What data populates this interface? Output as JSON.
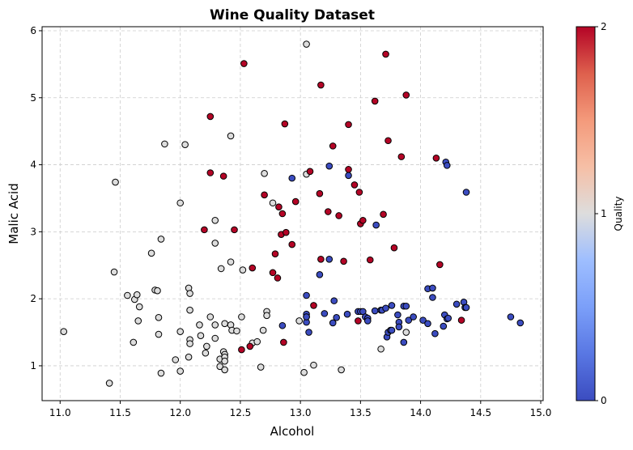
{
  "chart_data": {
    "type": "scatter",
    "title": "Wine Quality Dataset",
    "xlabel": "Alcohol",
    "ylabel": "Malic Acid",
    "xlim": [
      10.85,
      15.02
    ],
    "ylim": [
      0.48,
      6.06
    ],
    "xticks": [
      "11.0",
      "11.5",
      "12.0",
      "12.5",
      "13.0",
      "13.5",
      "14.0",
      "14.5",
      "15.0"
    ],
    "yticks": [
      "1",
      "2",
      "3",
      "4",
      "5",
      "6"
    ],
    "grid": true,
    "colorbar": {
      "label": "Quality",
      "colormap": "coolwarm",
      "ticks": [
        "0",
        "1",
        "2"
      ],
      "colors": [
        "#3b4cc0",
        "#dddddd",
        "#b40426"
      ]
    },
    "series": [
      {
        "name": "0",
        "color": "#3b4cc0",
        "points": [
          [
            13.05,
            2.05
          ],
          [
            13.05,
            1.77
          ],
          [
            13.05,
            1.73
          ],
          [
            13.05,
            1.65
          ],
          [
            13.07,
            1.5
          ],
          [
            13.16,
            2.36
          ],
          [
            13.2,
            1.78
          ],
          [
            13.24,
            2.59
          ],
          [
            13.24,
            3.98
          ],
          [
            13.27,
            1.64
          ],
          [
            13.28,
            1.97
          ],
          [
            13.3,
            1.72
          ],
          [
            13.39,
            1.77
          ],
          [
            13.4,
            3.84
          ],
          [
            13.48,
            1.81
          ],
          [
            13.5,
            1.81
          ],
          [
            13.52,
            1.81
          ],
          [
            13.54,
            1.73
          ],
          [
            13.56,
            1.71
          ],
          [
            13.56,
            1.67
          ],
          [
            13.62,
            1.82
          ],
          [
            13.63,
            3.1
          ],
          [
            13.67,
            1.83
          ],
          [
            13.68,
            1.83
          ],
          [
            13.71,
            1.86
          ],
          [
            13.72,
            1.43
          ],
          [
            13.73,
            1.5
          ],
          [
            13.75,
            1.53
          ],
          [
            13.76,
            1.9
          ],
          [
            13.76,
            1.53
          ],
          [
            13.81,
            1.76
          ],
          [
            13.82,
            1.65
          ],
          [
            13.82,
            1.58
          ],
          [
            13.86,
            1.35
          ],
          [
            13.86,
            1.89
          ],
          [
            13.88,
            1.89
          ],
          [
            13.9,
            1.68
          ],
          [
            13.94,
            1.73
          ],
          [
            14.02,
            1.68
          ],
          [
            14.06,
            1.63
          ],
          [
            14.06,
            2.15
          ],
          [
            14.1,
            2.16
          ],
          [
            14.1,
            2.02
          ],
          [
            14.12,
            1.48
          ],
          [
            14.19,
            1.59
          ],
          [
            14.2,
            1.76
          ],
          [
            14.21,
            4.04
          ],
          [
            14.22,
            3.99
          ],
          [
            14.22,
            1.7
          ],
          [
            14.23,
            1.71
          ],
          [
            14.3,
            1.92
          ],
          [
            14.36,
            1.95
          ],
          [
            14.37,
            1.87
          ],
          [
            14.38,
            1.87
          ],
          [
            14.38,
            3.59
          ],
          [
            14.75,
            1.73
          ],
          [
            14.83,
            1.64
          ],
          [
            12.85,
            1.6
          ],
          [
            12.93,
            3.8
          ],
          [
            13.05,
            1.73
          ]
        ]
      },
      {
        "name": "1",
        "color": "#dddddd",
        "points": [
          [
            11.03,
            1.51
          ],
          [
            11.41,
            0.74
          ],
          [
            11.45,
            2.4
          ],
          [
            11.46,
            3.74
          ],
          [
            11.56,
            2.05
          ],
          [
            11.61,
            1.35
          ],
          [
            11.62,
            1.99
          ],
          [
            11.64,
            2.06
          ],
          [
            11.65,
            1.67
          ],
          [
            11.66,
            1.88
          ],
          [
            11.76,
            2.68
          ],
          [
            11.79,
            2.13
          ],
          [
            11.81,
            2.12
          ],
          [
            11.82,
            1.72
          ],
          [
            11.82,
            1.47
          ],
          [
            11.84,
            2.89
          ],
          [
            11.84,
            0.89
          ],
          [
            11.87,
            4.31
          ],
          [
            11.96,
            1.09
          ],
          [
            12.0,
            0.92
          ],
          [
            12.0,
            3.43
          ],
          [
            12.0,
            1.51
          ],
          [
            12.04,
            4.3
          ],
          [
            12.07,
            2.16
          ],
          [
            12.07,
            1.13
          ],
          [
            12.08,
            1.39
          ],
          [
            12.08,
            1.33
          ],
          [
            12.08,
            1.83
          ],
          [
            12.08,
            2.08
          ],
          [
            12.16,
            1.61
          ],
          [
            12.17,
            1.45
          ],
          [
            12.21,
            1.19
          ],
          [
            12.22,
            1.29
          ],
          [
            12.25,
            1.73
          ],
          [
            12.29,
            1.61
          ],
          [
            12.29,
            3.17
          ],
          [
            12.29,
            2.83
          ],
          [
            12.29,
            1.41
          ],
          [
            12.33,
            0.99
          ],
          [
            12.33,
            1.1
          ],
          [
            12.34,
            2.45
          ],
          [
            12.36,
            1.21
          ],
          [
            12.37,
            1.17
          ],
          [
            12.37,
            1.13
          ],
          [
            12.37,
            1.07
          ],
          [
            12.37,
            0.94
          ],
          [
            12.37,
            1.63
          ],
          [
            12.42,
            4.43
          ],
          [
            12.42,
            2.55
          ],
          [
            12.42,
            1.61
          ],
          [
            12.43,
            1.53
          ],
          [
            12.47,
            1.52
          ],
          [
            12.51,
            1.73
          ],
          [
            12.52,
            2.43
          ],
          [
            12.6,
            1.34
          ],
          [
            12.64,
            1.36
          ],
          [
            12.67,
            0.98
          ],
          [
            12.69,
            1.53
          ],
          [
            12.7,
            3.87
          ],
          [
            12.72,
            1.81
          ],
          [
            12.72,
            1.75
          ],
          [
            12.77,
            3.43
          ],
          [
            12.99,
            1.67
          ],
          [
            13.03,
            0.9
          ],
          [
            13.05,
            5.8
          ],
          [
            13.05,
            3.86
          ],
          [
            13.11,
            1.01
          ],
          [
            13.34,
            0.94
          ],
          [
            13.67,
            1.25
          ],
          [
            13.88,
            1.5
          ]
        ]
      },
      {
        "name": "2",
        "color": "#b40426",
        "points": [
          [
            12.2,
            3.03
          ],
          [
            12.25,
            4.72
          ],
          [
            12.25,
            3.88
          ],
          [
            12.36,
            3.83
          ],
          [
            12.45,
            3.03
          ],
          [
            12.51,
            1.24
          ],
          [
            12.53,
            5.51
          ],
          [
            12.58,
            1.29
          ],
          [
            12.6,
            2.46
          ],
          [
            12.7,
            3.55
          ],
          [
            12.77,
            2.39
          ],
          [
            12.79,
            2.67
          ],
          [
            12.81,
            2.31
          ],
          [
            12.82,
            3.37
          ],
          [
            12.84,
            2.96
          ],
          [
            12.85,
            3.27
          ],
          [
            12.86,
            1.35
          ],
          [
            12.87,
            4.61
          ],
          [
            12.88,
            2.99
          ],
          [
            12.93,
            2.81
          ],
          [
            12.96,
            3.45
          ],
          [
            13.08,
            3.9
          ],
          [
            13.11,
            1.9
          ],
          [
            13.16,
            3.57
          ],
          [
            13.17,
            2.59
          ],
          [
            13.17,
            5.19
          ],
          [
            13.23,
            3.3
          ],
          [
            13.27,
            4.28
          ],
          [
            13.32,
            3.24
          ],
          [
            13.36,
            2.56
          ],
          [
            13.4,
            4.6
          ],
          [
            13.4,
            3.93
          ],
          [
            13.45,
            3.7
          ],
          [
            13.48,
            1.67
          ],
          [
            13.49,
            3.59
          ],
          [
            13.5,
            3.12
          ],
          [
            13.52,
            3.17
          ],
          [
            13.58,
            2.58
          ],
          [
            13.62,
            4.95
          ],
          [
            13.69,
            3.26
          ],
          [
            13.71,
            5.65
          ],
          [
            13.73,
            4.36
          ],
          [
            13.78,
            2.76
          ],
          [
            13.84,
            4.12
          ],
          [
            13.88,
            5.04
          ],
          [
            14.13,
            4.1
          ],
          [
            14.16,
            2.51
          ],
          [
            14.34,
            1.68
          ]
        ]
      }
    ]
  }
}
